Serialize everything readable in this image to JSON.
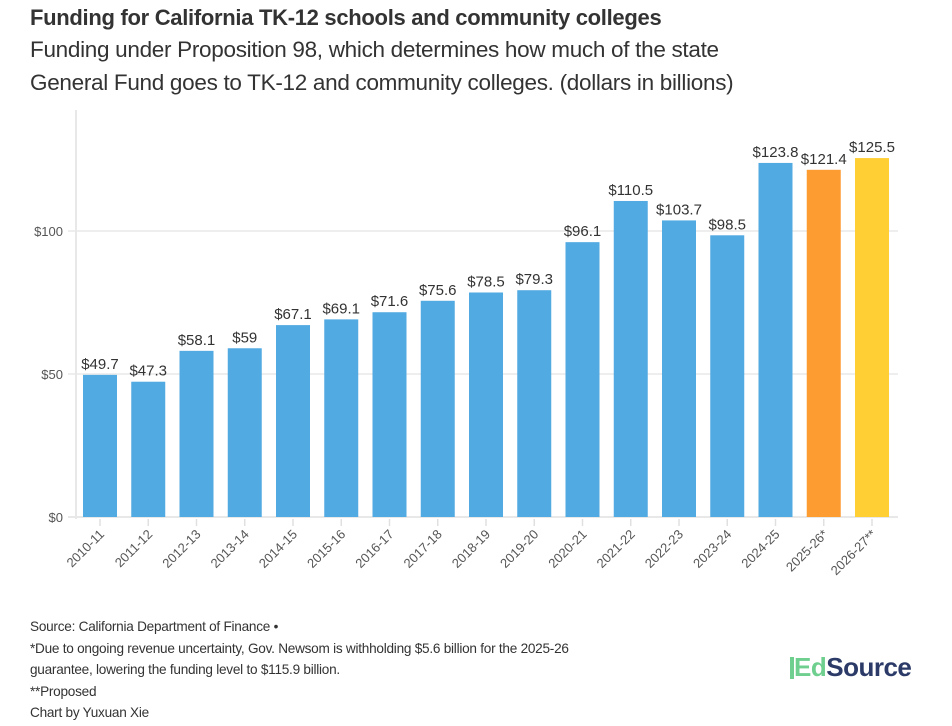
{
  "header": {
    "title": "Funding for California TK-12 schools and community colleges",
    "subtitle_line1": "Funding under Proposition 98, which determines how much of the state",
    "subtitle_line2": "General Fund goes to TK-12 and community colleges. (dollars in billions)"
  },
  "chart_data": {
    "type": "bar",
    "title": "Funding for California TK-12 schools and community colleges",
    "subtitle": "Funding under Proposition 98, which determines how much of the state General Fund goes to TK-12 and community colleges. (dollars in billions)",
    "xlabel": "",
    "ylabel": "",
    "categories": [
      "2010-11",
      "2011-12",
      "2012-13",
      "2013-14",
      "2014-15",
      "2015-16",
      "2016-17",
      "2017-18",
      "2018-19",
      "2019-20",
      "2020-21",
      "2021-22",
      "2022-23",
      "2023-24",
      "2024-25",
      "2025-26*",
      "2026-27**"
    ],
    "values": [
      49.7,
      47.3,
      58.1,
      59,
      67.1,
      69.1,
      71.6,
      75.6,
      78.5,
      79.3,
      96.1,
      110.5,
      103.7,
      98.5,
      123.8,
      121.4,
      125.5
    ],
    "value_labels": [
      "$49.7",
      "$47.3",
      "$58.1",
      "$59",
      "$67.1",
      "$69.1",
      "$71.6",
      "$75.6",
      "$78.5",
      "$79.3",
      "$96.1",
      "$110.5",
      "$103.7",
      "$98.5",
      "$123.8",
      "$121.4",
      "$125.5"
    ],
    "bar_colors": [
      "#52aae2",
      "#52aae2",
      "#52aae2",
      "#52aae2",
      "#52aae2",
      "#52aae2",
      "#52aae2",
      "#52aae2",
      "#52aae2",
      "#52aae2",
      "#52aae2",
      "#52aae2",
      "#52aae2",
      "#52aae2",
      "#52aae2",
      "#fd9c31",
      "#ffcf33"
    ],
    "ylim": [
      0,
      130
    ],
    "yticks": [
      0,
      50,
      100
    ],
    "ytick_labels": [
      "$0",
      "$50",
      "$100"
    ],
    "grid": true,
    "legend": "none"
  },
  "footer": {
    "source": "Source: California Department of Finance •",
    "note1_line1": "*Due to ongoing revenue uncertainty, Gov. Newsom is withholding $5.6 billion for the 2025-26",
    "note1_line2": "guarantee, lowering the funding level to $115.9 billion.",
    "note2": "**Proposed",
    "credit": "Chart by Yuxuan Xie"
  },
  "logo": {
    "part1": "Ed",
    "part2": "Source",
    "accent_color": "#6fcf8f",
    "brand_color": "#2b3a67"
  }
}
